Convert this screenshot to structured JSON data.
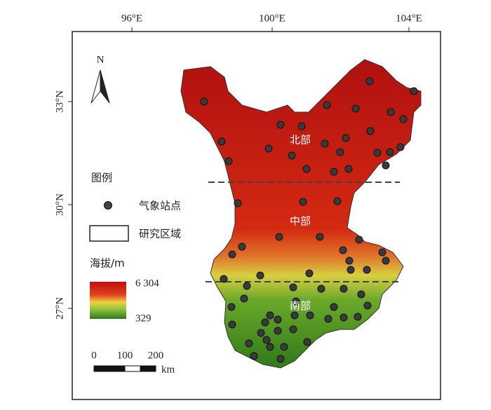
{
  "map": {
    "lon_labels": [
      "96°E",
      "100°E",
      "104°E"
    ],
    "lat_labels": [
      "33°N",
      "30°N",
      "27°N"
    ],
    "north": "N",
    "regions": [
      "北部",
      "中部",
      "南部"
    ],
    "legend": {
      "title": "图例",
      "station": "气象站点",
      "area": "研究区域",
      "elevation_title": "海拔/m",
      "elevation_max": "6 304",
      "elevation_min": "329"
    },
    "scale": {
      "labels": [
        "0",
        "100",
        "200"
      ],
      "unit": "km"
    }
  }
}
